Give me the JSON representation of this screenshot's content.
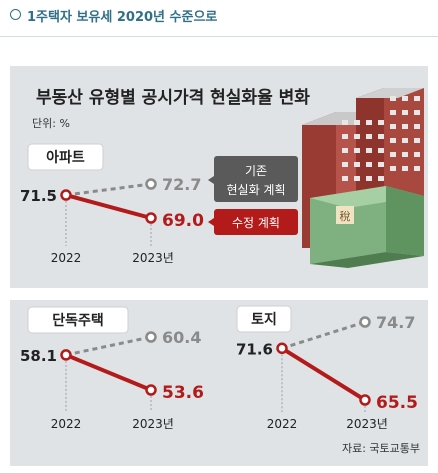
{
  "header": {
    "title": "1주택자 보유세 2020년 수준으로"
  },
  "colors": {
    "accent": "#2f6f88",
    "revised": "#b31b1b",
    "existing": "#8a8a8a",
    "panel": "#dfe3e6"
  },
  "chart_data": {
    "type": "line",
    "title": "부동산 유형별 공시가격 현실화율 변화",
    "unit": "단위: %",
    "source": "자료: 국토교통부",
    "legend": {
      "existing": "기존 현실화 계획",
      "revised": "수정 계획"
    },
    "x": [
      "2022",
      "2023년"
    ],
    "panels": [
      {
        "name": "아파트",
        "start": 71.5,
        "existing": 72.7,
        "revised": 69.0,
        "labels": {
          "start": "71.5",
          "existing": "72.7",
          "revised": "69.0"
        }
      },
      {
        "name": "단독주택",
        "start": 58.1,
        "existing": 60.4,
        "revised": 53.6,
        "labels": {
          "start": "58.1",
          "existing": "60.4",
          "revised": "53.6"
        }
      },
      {
        "name": "토지",
        "start": 71.6,
        "existing": 74.7,
        "revised": 65.5,
        "labels": {
          "start": "71.6",
          "existing": "74.7",
          "revised": "65.5"
        }
      }
    ]
  },
  "illustration": {
    "sign": "稅"
  }
}
